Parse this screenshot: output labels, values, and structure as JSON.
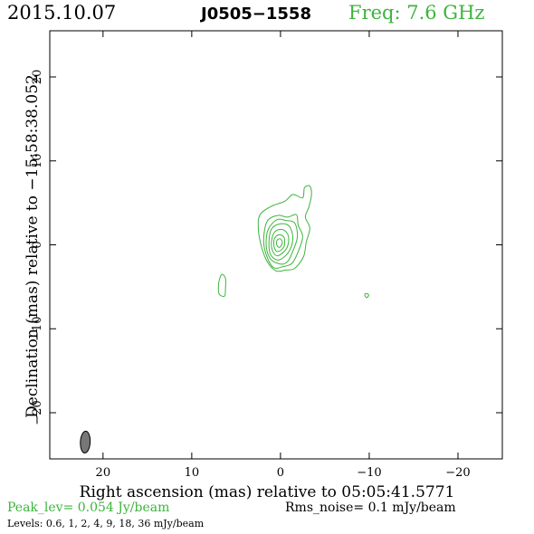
{
  "header": {
    "date": "2015.10.07",
    "source": "J0505−1558",
    "freq": "Freq: 7.6 GHz"
  },
  "footer": {
    "peak": "Peak_lev=  0.054 Jy/beam",
    "rms": "Rms_noise=   0.1 mJy/beam",
    "levels": "Levels: 0.6,    1,    2,    4,    9,   18,   36 mJy/beam"
  },
  "colors": {
    "contour": "#3cb43c",
    "beam": "#777777",
    "peak_text": "#3cb43c"
  },
  "chart_data": {
    "type": "contour",
    "title": "J0505−1558",
    "xlabel": "Right ascension (mas) relative to 05:05:41.5771",
    "ylabel": "Declination (mas) relative to −15:58:38.052",
    "xlim": [
      26,
      -25
    ],
    "ylim": [
      -25.5,
      25.5
    ],
    "x_ticks": [
      20,
      10,
      0,
      -10,
      -20
    ],
    "x_tick_labels": [
      "20",
      "10",
      "0",
      "−10",
      "−20"
    ],
    "y_ticks": [
      20,
      10,
      0,
      -10,
      -20
    ],
    "y_tick_labels": [
      "20",
      "10",
      "0",
      "−10",
      "−20"
    ],
    "levels_mJy": [
      0.6,
      1,
      2,
      4,
      9,
      18,
      36
    ],
    "peak_Jy_per_beam": 0.054,
    "rms_mJy_per_beam": 0.1,
    "contours": [
      {
        "level": 0.6,
        "points": [
          [
            -0.6,
            -3
          ],
          [
            0.5,
            -3.1
          ],
          [
            1.5,
            -2
          ],
          [
            2.2,
            0
          ],
          [
            2.5,
            2
          ],
          [
            2.3,
            3.6
          ],
          [
            1,
            4.6
          ],
          [
            -0.5,
            5.2
          ],
          [
            -1.4,
            6
          ],
          [
            -2.5,
            5.6
          ],
          [
            -2.7,
            6.8
          ],
          [
            -3.3,
            7
          ],
          [
            -3.5,
            6
          ],
          [
            -3.2,
            4.5
          ],
          [
            -2.8,
            3.3
          ],
          [
            -3.3,
            2
          ],
          [
            -2.9,
            0.3
          ],
          [
            -2.6,
            -1.4
          ],
          [
            -1.6,
            -2.8
          ]
        ]
      },
      {
        "level": 1,
        "points": [
          [
            -0.3,
            -2.6
          ],
          [
            0.8,
            -2.7
          ],
          [
            1.6,
            -1.2
          ],
          [
            1.9,
            0.6
          ],
          [
            1.5,
            2.8
          ],
          [
            0.3,
            3.5
          ],
          [
            -0.8,
            3.3
          ],
          [
            -1.8,
            3.6
          ],
          [
            -2,
            2.3
          ],
          [
            -2.5,
            1
          ],
          [
            -2,
            -0.8
          ],
          [
            -1.3,
            -2.2
          ]
        ]
      },
      {
        "level": 2,
        "points": [
          [
            0,
            -2.3
          ],
          [
            1.1,
            -1.7
          ],
          [
            1.6,
            -0.2
          ],
          [
            1.4,
            1.8
          ],
          [
            0.4,
            3
          ],
          [
            -0.6,
            2.9
          ],
          [
            -1.6,
            2.6
          ],
          [
            -1.9,
            0.9
          ],
          [
            -1.3,
            -1
          ],
          [
            -0.8,
            -2
          ]
        ]
      },
      {
        "level": 4,
        "points": [
          [
            0.2,
            -1.8
          ],
          [
            1.1,
            -1.2
          ],
          [
            1.3,
            0.3
          ],
          [
            1,
            1.9
          ],
          [
            0,
            2.5
          ],
          [
            -1,
            2.2
          ],
          [
            -1.4,
            0.7
          ],
          [
            -0.9,
            -0.9
          ]
        ]
      },
      {
        "level": 9,
        "points": [
          [
            0.3,
            -1.3
          ],
          [
            0.9,
            -0.7
          ],
          [
            1,
            0.5
          ],
          [
            0.6,
            1.6
          ],
          [
            -0.3,
            1.8
          ],
          [
            -0.9,
            1
          ],
          [
            -0.7,
            -0.4
          ]
        ]
      },
      {
        "level": 18,
        "points": [
          [
            0.3,
            -0.8
          ],
          [
            0.7,
            -0.3
          ],
          [
            0.7,
            0.7
          ],
          [
            0.2,
            1.2
          ],
          [
            -0.4,
            0.9
          ],
          [
            -0.4,
            -0.2
          ]
        ]
      },
      {
        "level": 36,
        "points": [
          [
            0.2,
            -0.3
          ],
          [
            0.45,
            0.1
          ],
          [
            0.35,
            0.6
          ],
          [
            0,
            0.7
          ],
          [
            -0.2,
            0.3
          ],
          [
            -0.05,
            -0.15
          ]
        ]
      },
      {
        "level": 0.6,
        "points": [
          [
            6.3,
            -6.1
          ],
          [
            6.9,
            -5.9
          ],
          [
            7,
            -5.1
          ],
          [
            6.9,
            -4.2
          ],
          [
            6.6,
            -3.5
          ],
          [
            6.2,
            -4
          ],
          [
            6.2,
            -5.2
          ]
        ]
      },
      {
        "level": 0.6,
        "points": [
          [
            -9.7,
            -6.3
          ],
          [
            -9.9,
            -6.1
          ],
          [
            -9.9,
            -5.9
          ],
          [
            -9.6,
            -5.8
          ],
          [
            -9.5,
            -6
          ]
        ]
      }
    ],
    "beam": {
      "x": 22,
      "y": -23.5,
      "major_mas": 2.6,
      "minor_mas": 1.1,
      "pa_deg": 3
    }
  }
}
